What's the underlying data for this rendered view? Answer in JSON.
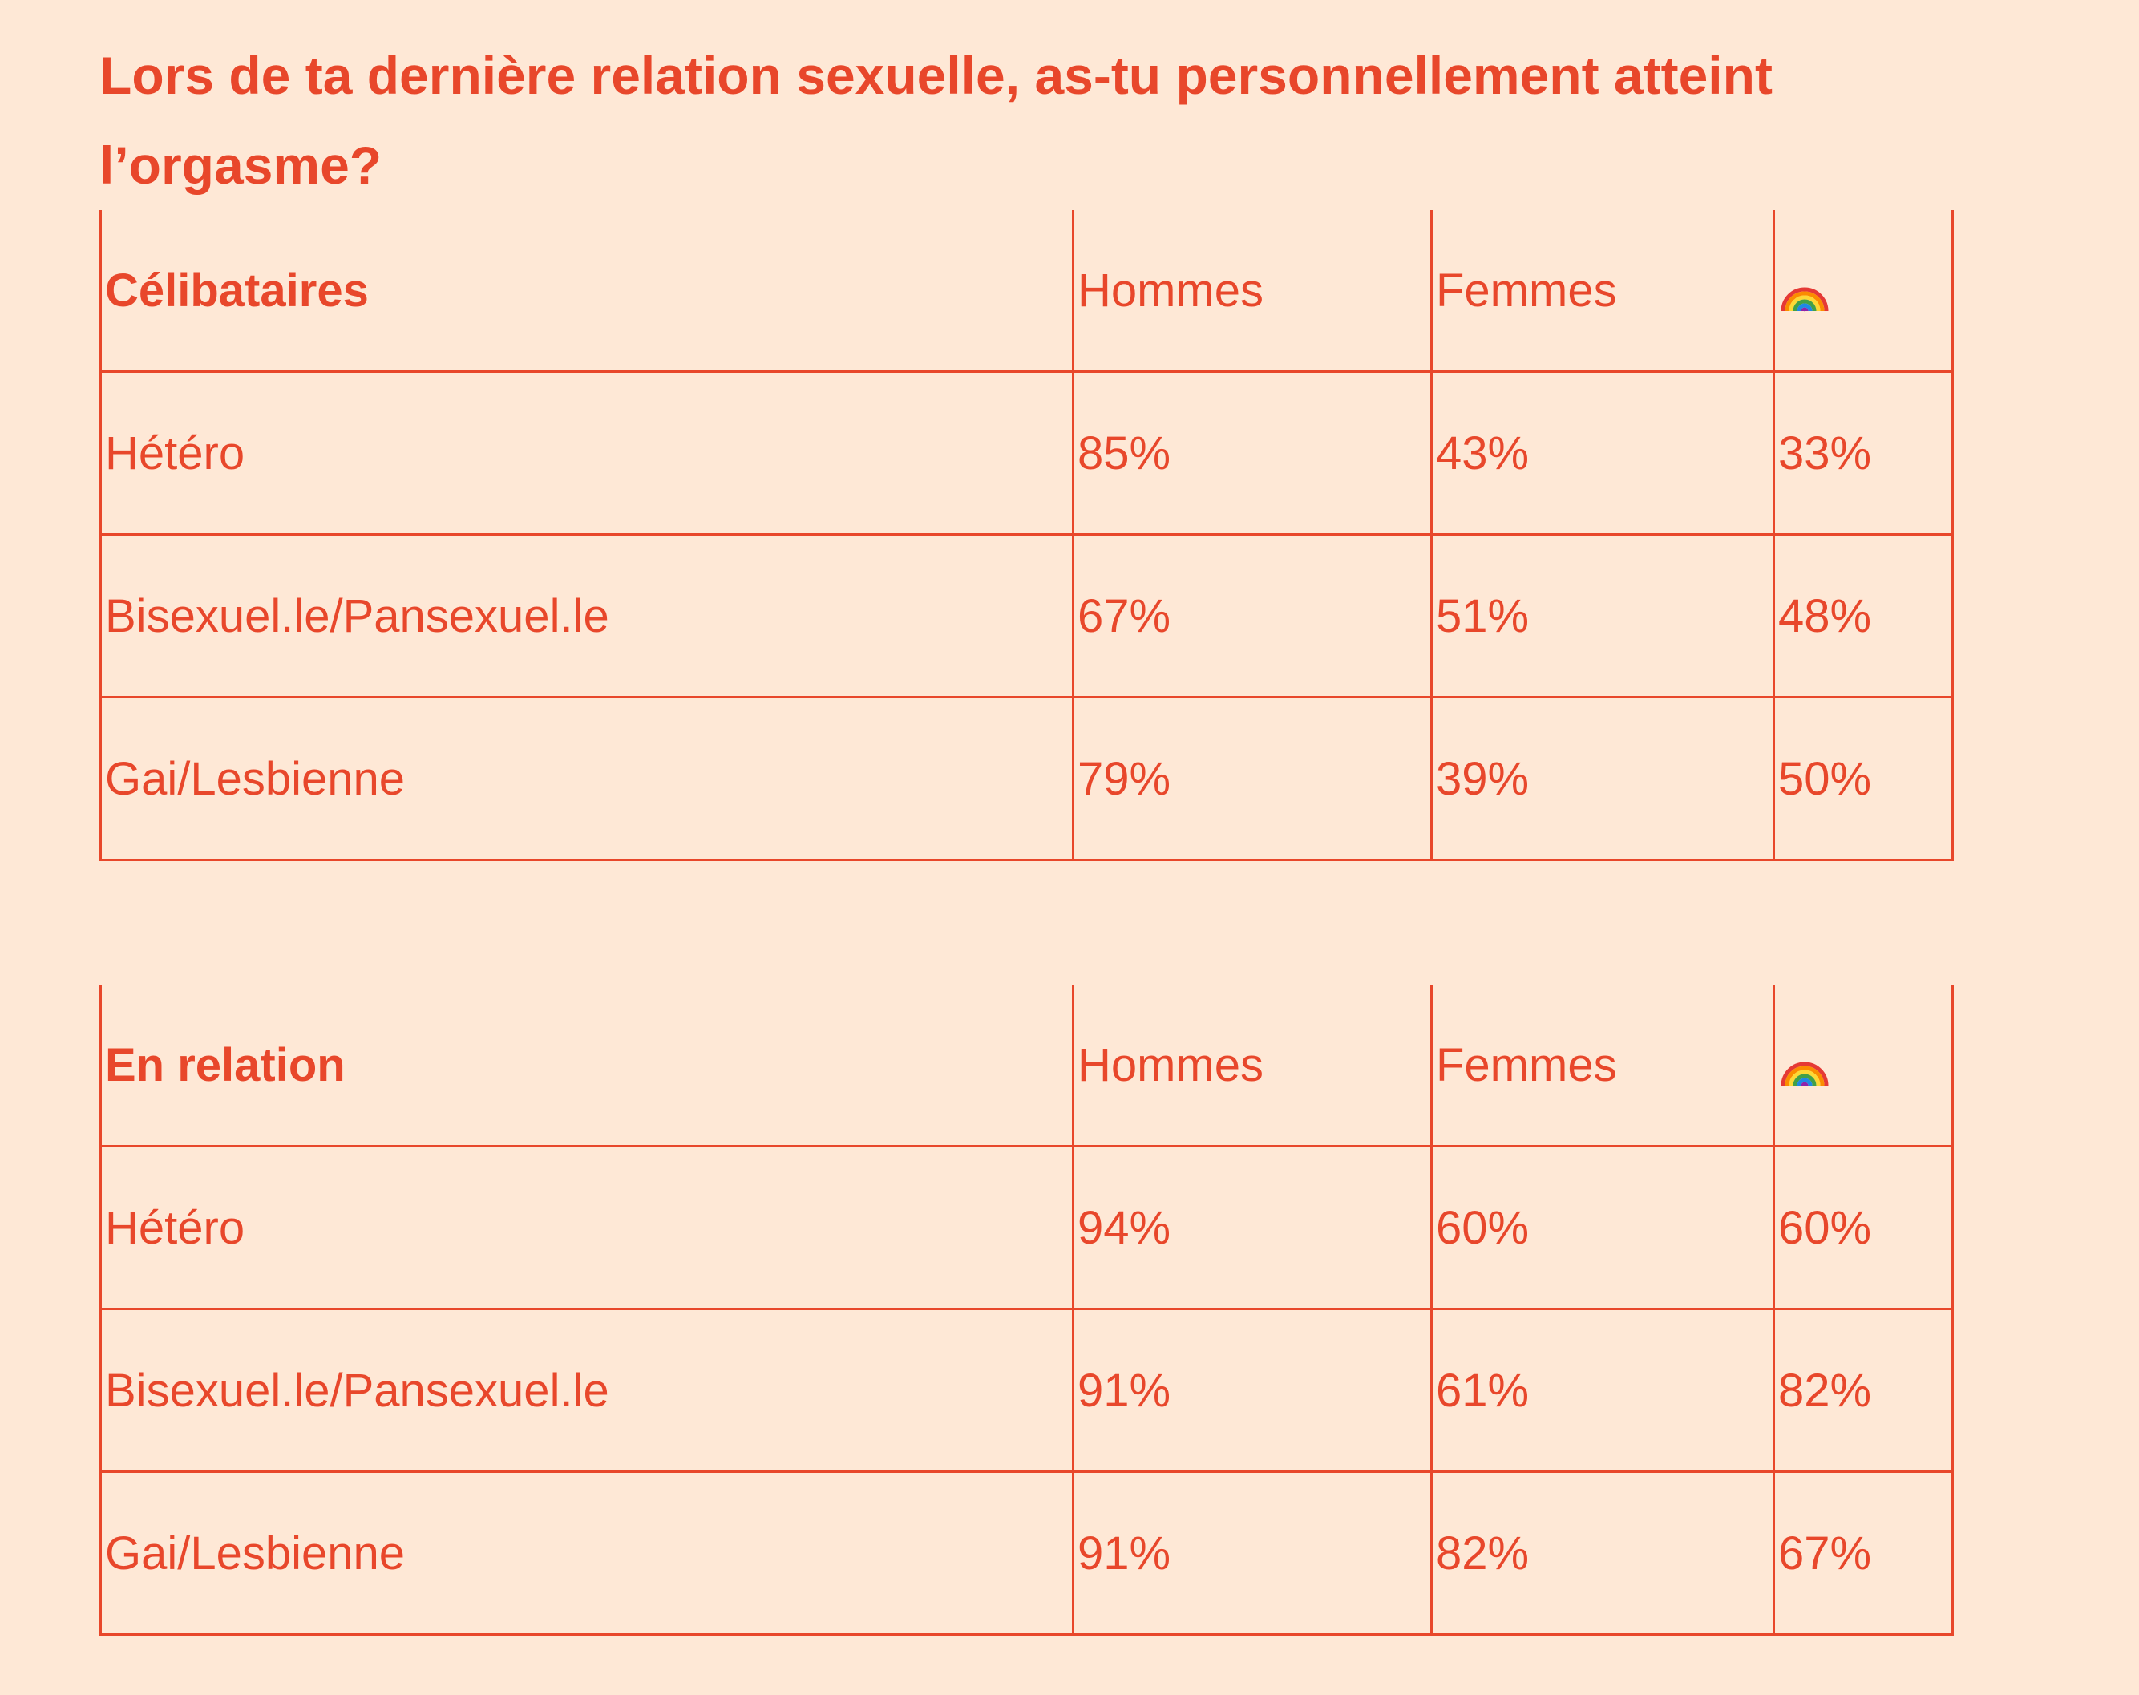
{
  "title": "Lors de ta dernière relation sexuelle, as-tu personnellement atteint l’orgasme?",
  "chart_data": [
    {
      "type": "table",
      "title": "Célibataires",
      "columns": [
        "Hommes",
        "Femmes",
        "rainbow-icon"
      ],
      "rows": [
        {
          "label": "Hétéro",
          "values": [
            "85%",
            "43%",
            "33%"
          ]
        },
        {
          "label": "Bisexuel.le/Pansexuel.le",
          "values": [
            "67%",
            "51%",
            "48%"
          ]
        },
        {
          "label": "Gai/Lesbienne",
          "values": [
            "79%",
            "39%",
            "50%"
          ]
        }
      ]
    },
    {
      "type": "table",
      "title": "En relation",
      "columns": [
        "Hommes",
        "Femmes",
        "rainbow-icon"
      ],
      "rows": [
        {
          "label": "Hétéro",
          "values": [
            "94%",
            "60%",
            "60%"
          ]
        },
        {
          "label": "Bisexuel.le/Pansexuel.le",
          "values": [
            "91%",
            "61%",
            "82%"
          ]
        },
        {
          "label": "Gai/Lesbienne",
          "values": [
            "91%",
            "82%",
            "67%"
          ]
        }
      ]
    }
  ]
}
